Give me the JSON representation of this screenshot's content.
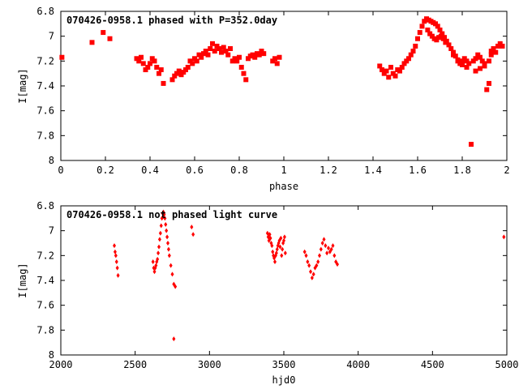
{
  "colors": {
    "points": "#ff0000",
    "frame": "#000000",
    "background": "#ffffff"
  },
  "chart_data": [
    {
      "type": "scatter",
      "title": "070426-0958.1 phased with P=352.0day",
      "xlabel": "phase",
      "ylabel": "I[mag]",
      "xlim": [
        0,
        2
      ],
      "ylim": [
        6.8,
        8
      ],
      "y_inverted": true,
      "grid": false,
      "legend": "none",
      "marker": "square",
      "xticks": [
        {
          "v": 0,
          "label": "0"
        },
        {
          "v": 0.2,
          "label": "0.2"
        },
        {
          "v": 0.4,
          "label": "0.4"
        },
        {
          "v": 0.6,
          "label": "0.6"
        },
        {
          "v": 0.8,
          "label": "0.8"
        },
        {
          "v": 1.0,
          "label": "1"
        },
        {
          "v": 1.2,
          "label": "1.2"
        },
        {
          "v": 1.4,
          "label": "1.4"
        },
        {
          "v": 1.6,
          "label": "1.6"
        },
        {
          "v": 1.8,
          "label": "1.8"
        },
        {
          "v": 2.0,
          "label": "2"
        }
      ],
      "yticks": [
        {
          "v": 6.8,
          "label": "6.8"
        },
        {
          "v": 7.0,
          "label": "7"
        },
        {
          "v": 7.2,
          "label": "7.2"
        },
        {
          "v": 7.4,
          "label": "7.4"
        },
        {
          "v": 7.6,
          "label": "7.6"
        },
        {
          "v": 7.8,
          "label": "7.8"
        },
        {
          "v": 8.0,
          "label": "8"
        }
      ],
      "x": [
        0.005,
        0.14,
        0.19,
        0.22,
        0.34,
        0.35,
        0.36,
        0.37,
        0.38,
        0.39,
        0.4,
        0.41,
        0.42,
        0.43,
        0.44,
        0.45,
        0.46,
        0.5,
        0.51,
        0.52,
        0.53,
        0.54,
        0.55,
        0.56,
        0.57,
        0.58,
        0.59,
        0.6,
        0.61,
        0.62,
        0.63,
        0.64,
        0.65,
        0.66,
        0.67,
        0.68,
        0.69,
        0.7,
        0.71,
        0.72,
        0.73,
        0.74,
        0.75,
        0.76,
        0.77,
        0.78,
        0.79,
        0.8,
        0.81,
        0.82,
        0.83,
        0.84,
        0.85,
        0.86,
        0.87,
        0.88,
        0.89,
        0.9,
        0.91,
        0.95,
        0.96,
        0.97,
        0.98,
        1.43,
        1.44,
        1.45,
        1.46,
        1.47,
        1.48,
        1.49,
        1.5,
        1.51,
        1.52,
        1.53,
        1.54,
        1.55,
        1.56,
        1.57,
        1.58,
        1.59,
        1.6,
        1.61,
        1.62,
        1.63,
        1.64,
        1.65,
        1.66,
        1.67,
        1.68,
        1.69,
        1.7,
        1.71,
        1.72,
        1.73,
        1.74,
        1.75,
        1.76,
        1.77,
        1.78,
        1.79,
        1.8,
        1.81,
        1.82,
        1.83,
        1.84,
        1.85,
        1.86,
        1.87,
        1.88,
        1.89,
        1.9,
        1.91,
        1.92,
        1.93,
        1.94,
        1.95,
        1.96,
        1.97,
        1.98,
        1.645,
        1.655,
        1.665,
        1.675,
        1.685,
        1.695,
        1.705,
        1.715,
        1.725,
        1.76,
        1.78,
        1.8,
        1.82,
        1.86,
        1.88,
        1.9,
        1.92,
        1.93
      ],
      "y": [
        7.17,
        7.05,
        6.97,
        7.02,
        7.18,
        7.2,
        7.17,
        7.22,
        7.27,
        7.25,
        7.22,
        7.18,
        7.2,
        7.25,
        7.3,
        7.27,
        7.38,
        7.35,
        7.32,
        7.3,
        7.28,
        7.31,
        7.29,
        7.27,
        7.25,
        7.2,
        7.22,
        7.18,
        7.2,
        7.15,
        7.17,
        7.14,
        7.12,
        7.15,
        7.1,
        7.06,
        7.12,
        7.08,
        7.1,
        7.13,
        7.09,
        7.12,
        7.15,
        7.1,
        7.2,
        7.18,
        7.2,
        7.17,
        7.25,
        7.3,
        7.35,
        7.18,
        7.16,
        7.15,
        7.17,
        7.14,
        7.15,
        7.12,
        7.14,
        7.2,
        7.18,
        7.22,
        7.17,
        7.24,
        7.27,
        7.3,
        7.28,
        7.33,
        7.25,
        7.3,
        7.32,
        7.27,
        7.28,
        7.25,
        7.22,
        7.2,
        7.18,
        7.15,
        7.12,
        7.08,
        7.02,
        6.97,
        6.92,
        6.88,
        6.86,
        6.87,
        6.88,
        6.89,
        6.9,
        6.92,
        6.95,
        6.98,
        7.01,
        7.04,
        7.07,
        7.1,
        7.13,
        7.16,
        7.19,
        7.22,
        7.2,
        7.18,
        7.2,
        7.22,
        7.87,
        7.2,
        7.18,
        7.15,
        7.17,
        7.2,
        7.22,
        7.43,
        7.38,
        7.12,
        7.1,
        7.13,
        7.08,
        7.06,
        7.08,
        6.95,
        6.98,
        7.0,
        7.02,
        7.03,
        7.01,
        7.0,
        7.02,
        7.05,
        7.15,
        7.2,
        7.23,
        7.25,
        7.28,
        7.26,
        7.24,
        7.2,
        7.15
      ]
    },
    {
      "type": "scatter",
      "title": "070426-0958.1 not phased light curve",
      "xlabel": "hjd0",
      "ylabel": "I[mag]",
      "xlim": [
        2000,
        5000
      ],
      "ylim": [
        6.8,
        8
      ],
      "y_inverted": true,
      "grid": false,
      "legend": "none",
      "marker": "diamond",
      "xticks": [
        {
          "v": 2000,
          "label": "2000"
        },
        {
          "v": 2500,
          "label": "2500"
        },
        {
          "v": 3000,
          "label": "3000"
        },
        {
          "v": 3500,
          "label": "3500"
        },
        {
          "v": 4000,
          "label": "4000"
        },
        {
          "v": 4500,
          "label": "4500"
        },
        {
          "v": 5000,
          "label": "5000"
        }
      ],
      "yticks": [
        {
          "v": 6.8,
          "label": "6.8"
        },
        {
          "v": 7.0,
          "label": "7"
        },
        {
          "v": 7.2,
          "label": "7.2"
        },
        {
          "v": 7.4,
          "label": "7.4"
        },
        {
          "v": 7.6,
          "label": "7.6"
        },
        {
          "v": 7.8,
          "label": "7.8"
        },
        {
          "v": 8.0,
          "label": "8"
        }
      ],
      "x": [
        2360,
        2365,
        2370,
        2375,
        2380,
        2385,
        2620,
        2625,
        2630,
        2635,
        2640,
        2645,
        2650,
        2655,
        2660,
        2665,
        2670,
        2675,
        2680,
        2685,
        2690,
        2695,
        2700,
        2705,
        2710,
        2715,
        2720,
        2725,
        2730,
        2740,
        2750,
        2760,
        2770,
        2760,
        2880,
        2890,
        3390,
        3395,
        3400,
        3405,
        3410,
        3415,
        3420,
        3425,
        3430,
        3435,
        3440,
        3445,
        3450,
        3455,
        3460,
        3465,
        3470,
        3475,
        3480,
        3485,
        3490,
        3495,
        3500,
        3505,
        3510,
        3640,
        3650,
        3660,
        3670,
        3680,
        3690,
        3700,
        3710,
        3720,
        3730,
        3740,
        3750,
        3760,
        3770,
        3780,
        3790,
        3800,
        3810,
        3820,
        3830,
        3840,
        3850,
        3860,
        4980
      ],
      "y": [
        7.12,
        7.17,
        7.2,
        7.25,
        7.3,
        7.36,
        7.25,
        7.3,
        7.33,
        7.3,
        7.28,
        7.25,
        7.23,
        7.18,
        7.13,
        7.07,
        7.02,
        6.96,
        6.9,
        6.86,
        6.85,
        6.87,
        6.9,
        6.95,
        7.0,
        7.05,
        7.1,
        7.15,
        7.2,
        7.28,
        7.35,
        7.43,
        7.45,
        7.87,
        6.97,
        7.03,
        7.02,
        7.05,
        7.08,
        7.03,
        7.06,
        7.1,
        7.12,
        7.17,
        7.2,
        7.22,
        7.25,
        7.2,
        7.18,
        7.15,
        7.12,
        7.1,
        7.08,
        7.13,
        7.06,
        7.2,
        7.15,
        7.1,
        7.08,
        7.05,
        7.18,
        7.17,
        7.2,
        7.25,
        7.28,
        7.33,
        7.38,
        7.35,
        7.3,
        7.28,
        7.25,
        7.2,
        7.15,
        7.1,
        7.07,
        7.12,
        7.18,
        7.14,
        7.17,
        7.15,
        7.12,
        7.2,
        7.25,
        7.27,
        7.05
      ]
    }
  ]
}
